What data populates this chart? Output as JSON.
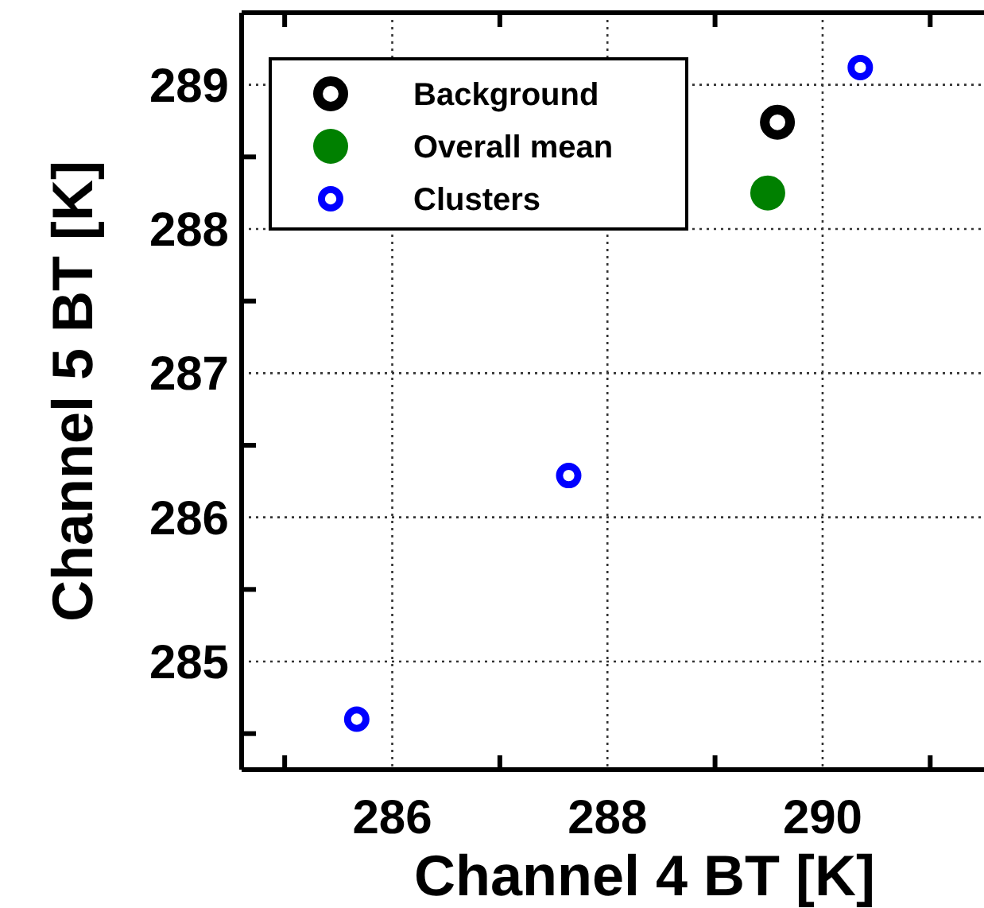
{
  "chart_data": {
    "type": "scatter",
    "xlabel": "Channel 4 BT [K]",
    "ylabel": "Channel 5 BT [K]",
    "xlim": [
      284.6,
      291.5
    ],
    "ylim": [
      284.25,
      289.5
    ],
    "xticks": [
      {
        "value": 285,
        "label": null
      },
      286,
      {
        "value": 287,
        "label": null
      },
      288,
      {
        "value": 289,
        "label": null
      },
      290,
      {
        "value": 291,
        "label": null
      }
    ],
    "yticks": [
      {
        "value": 284.5,
        "label": null
      },
      285,
      {
        "value": 285.5,
        "label": null
      },
      286,
      {
        "value": 286.5,
        "label": null
      },
      287,
      {
        "value": 287.5,
        "label": null
      },
      288,
      {
        "value": 288.5,
        "label": null
      },
      289
    ],
    "grid": true,
    "legend": "top left",
    "marker": "circle",
    "series": [
      {
        "name": "Background",
        "color": "#000000",
        "x": [
          289.58
        ],
        "values": [
          288.74
        ]
      },
      {
        "name": "Overall mean",
        "color": "#008000",
        "x": [
          289.49
        ],
        "values": [
          288.25
        ]
      },
      {
        "name": "Clusters",
        "color": "#0000ff",
        "x": [
          290.35,
          287.64,
          285.67
        ],
        "values": [
          289.12,
          286.29,
          284.6
        ]
      }
    ]
  }
}
